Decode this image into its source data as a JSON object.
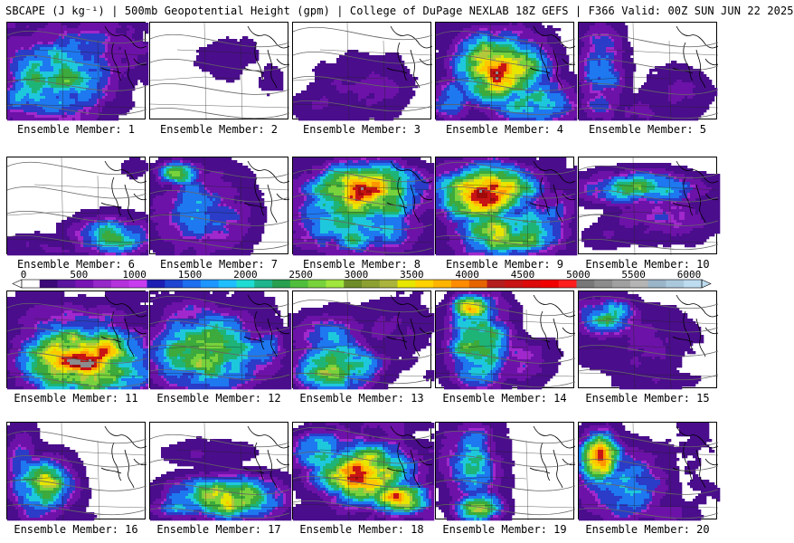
{
  "header": {
    "title": "SBCAPE (J kg⁻¹) | 500mb Geopotential Height (gpm) | College of DuPage NEXLAB 18Z GEFS | F366 Valid: 00Z SUN JUN 22 2025"
  },
  "colorbar": {
    "ticks": [
      "0",
      "500",
      "1000",
      "1500",
      "2000",
      "2500",
      "3000",
      "3500",
      "4000",
      "4500",
      "5000",
      "5500",
      "6000"
    ],
    "colors": [
      "#ffffff",
      "#3c0a78",
      "#5a14a0",
      "#7814b4",
      "#9628c8",
      "#b432dc",
      "#c83cf0",
      "#1e1eb4",
      "#1e46d2",
      "#1e6ef0",
      "#1e96ff",
      "#1ebeff",
      "#1edcd2",
      "#1eb48c",
      "#28a050",
      "#50be3c",
      "#78d23c",
      "#a0e63c",
      "#6e8c28",
      "#8ca032",
      "#aab43c",
      "#e6e600",
      "#ffd200",
      "#ffb400",
      "#ff8c00",
      "#e66400",
      "#b41e1e",
      "#c81414",
      "#dc0a0a",
      "#f00000",
      "#ff1e1e",
      "#787878",
      "#8c8c8c",
      "#a0a0a0",
      "#b4b4b4",
      "#9ab4c8",
      "#aac8dc",
      "#bedcf0"
    ]
  },
  "members": [
    {
      "label": "Ensemble Member: 1"
    },
    {
      "label": "Ensemble Member: 2"
    },
    {
      "label": "Ensemble Member: 3"
    },
    {
      "label": "Ensemble Member: 4"
    },
    {
      "label": "Ensemble Member: 5"
    },
    {
      "label": "Ensemble Member: 6"
    },
    {
      "label": "Ensemble Member: 7"
    },
    {
      "label": "Ensemble Member: 8"
    },
    {
      "label": "Ensemble Member: 9"
    },
    {
      "label": "Ensemble Member: 10"
    },
    {
      "label": "Ensemble Member: 11"
    },
    {
      "label": "Ensemble Member: 12"
    },
    {
      "label": "Ensemble Member: 13"
    },
    {
      "label": "Ensemble Member: 14"
    },
    {
      "label": "Ensemble Member: 15"
    },
    {
      "label": "Ensemble Member: 16"
    },
    {
      "label": "Ensemble Member: 17"
    },
    {
      "label": "Ensemble Member: 18"
    },
    {
      "label": "Ensemble Member: 19"
    },
    {
      "label": "Ensemble Member: 20"
    }
  ]
}
